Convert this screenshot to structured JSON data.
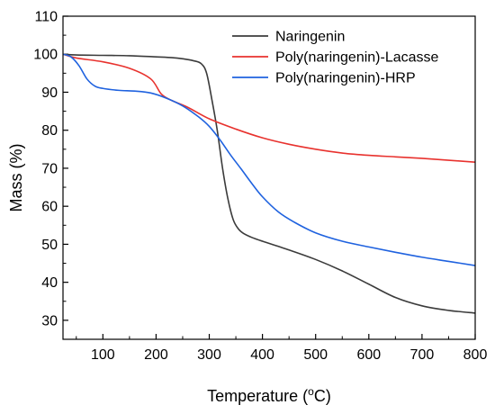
{
  "chart_data": {
    "type": "line",
    "xlabel": "Temperature (",
    "xlabel_sup": "o",
    "xlabel_tail": "C)",
    "ylabel": "Mass (%)",
    "xlim": [
      25,
      800
    ],
    "ylim": [
      25,
      110
    ],
    "x_ticks": [
      100,
      200,
      300,
      400,
      500,
      600,
      700,
      800
    ],
    "y_ticks": [
      30,
      40,
      50,
      60,
      70,
      80,
      90,
      100,
      110
    ],
    "x_minor_ticks": [
      50,
      150,
      250,
      350,
      450,
      550,
      650,
      750
    ],
    "y_minor_ticks": [
      35,
      45,
      55,
      65,
      75,
      85,
      95,
      105
    ],
    "grid": false,
    "legend_position": "top-right",
    "series": [
      {
        "name": "Naringenin",
        "color": "#3b3b3b",
        "x": [
          25,
          50,
          100,
          150,
          200,
          230,
          250,
          270,
          285,
          295,
          305,
          315,
          325,
          335,
          345,
          355,
          365,
          380,
          400,
          450,
          500,
          550,
          600,
          650,
          700,
          750,
          800
        ],
        "y": [
          100,
          99.8,
          99.7,
          99.6,
          99.3,
          99.1,
          98.8,
          98.3,
          97.5,
          95,
          88,
          80,
          70,
          62,
          56.5,
          54,
          52.8,
          51.8,
          50.8,
          48.5,
          46,
          43,
          39.5,
          36,
          33.8,
          32.6,
          31.9
        ]
      },
      {
        "name": "Poly(naringenin)-Lacasse",
        "color": "#e8322e",
        "x": [
          25,
          50,
          100,
          150,
          190,
          210,
          230,
          260,
          300,
          350,
          400,
          450,
          500,
          550,
          600,
          650,
          700,
          750,
          800
        ],
        "y": [
          100,
          99,
          98,
          96.3,
          93.5,
          89.5,
          87.8,
          86,
          83,
          80.3,
          78,
          76.3,
          75,
          74,
          73.4,
          73,
          72.6,
          72.1,
          71.6
        ]
      },
      {
        "name": "Poly(naringenin)-HRP",
        "color": "#1f62df",
        "x": [
          25,
          40,
          55,
          70,
          85,
          100,
          130,
          160,
          190,
          220,
          250,
          280,
          300,
          320,
          340,
          360,
          380,
          400,
          430,
          460,
          500,
          550,
          600,
          650,
          700,
          750,
          800
        ],
        "y": [
          100,
          99.3,
          97,
          93.5,
          91.6,
          91,
          90.5,
          90.3,
          89.8,
          88.4,
          86.4,
          83.5,
          81,
          77.5,
          73.5,
          69.8,
          66,
          62.5,
          58.5,
          55.8,
          53,
          50.8,
          49.3,
          47.9,
          46.6,
          45.5,
          44.4
        ]
      }
    ]
  }
}
